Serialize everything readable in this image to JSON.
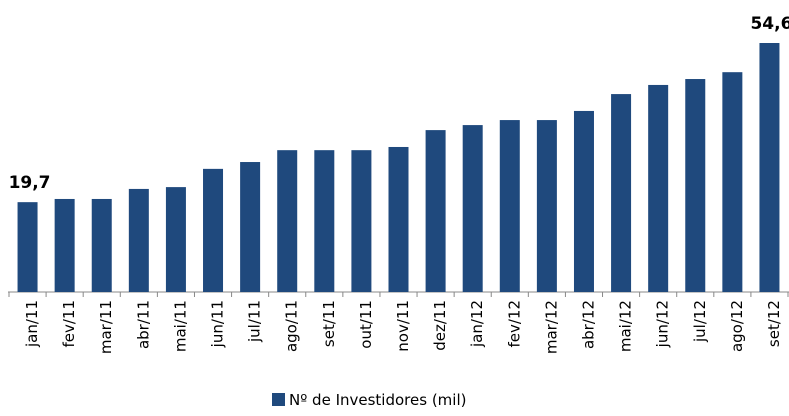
{
  "chart_data": {
    "type": "bar",
    "categories": [
      "jan/11",
      "fev/11",
      "mar/11",
      "abr/11",
      "mai/11",
      "jun/11",
      "jul/11",
      "ago/11",
      "set/11",
      "out/11",
      "nov/11",
      "dez/11",
      "jan/12",
      "fev/12",
      "mar/12",
      "abr/12",
      "mai/12",
      "jun/12",
      "jul/12",
      "ago/12",
      "set/12"
    ],
    "series": [
      {
        "name": "Nº de Investidores (mil)",
        "color": "#1f497d",
        "values": [
          19.7,
          20.4,
          20.4,
          22.6,
          23.0,
          27.0,
          28.5,
          31.1,
          31.1,
          31.1,
          31.8,
          35.5,
          36.6,
          37.7,
          37.7,
          39.7,
          43.4,
          45.4,
          46.7,
          48.2,
          54.6
        ],
        "value_labels": [
          "19,7",
          null,
          null,
          null,
          null,
          null,
          null,
          null,
          null,
          null,
          null,
          null,
          null,
          null,
          null,
          null,
          null,
          null,
          null,
          null,
          "54,6"
        ]
      }
    ],
    "legend": "bottom"
  }
}
